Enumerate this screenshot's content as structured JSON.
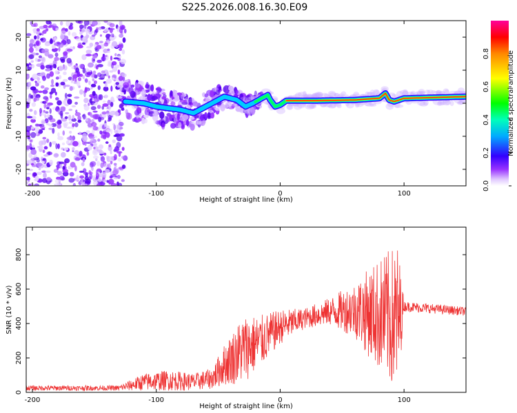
{
  "chart_data": [
    {
      "type": "heatmap",
      "title": "S225.2026.008.16.30.E09",
      "xlabel": "Height of straight line (km)",
      "ylabel": "Frequency (Hz)",
      "xlim": [
        -205,
        150
      ],
      "ylim": [
        -25,
        25
      ],
      "xticks": [
        -200,
        -100,
        0,
        100
      ],
      "yticks": [
        -20,
        -10,
        0,
        10,
        20
      ],
      "colorbar": {
        "label": "Normalized spectral amplitude",
        "range": [
          0,
          1
        ],
        "ticks": [
          0.0,
          0.2,
          0.4,
          0.6,
          0.8
        ]
      },
      "ridge": [
        {
          "x": -125,
          "y": 0.5
        },
        {
          "x": -110,
          "y": 0
        },
        {
          "x": -100,
          "y": -1
        },
        {
          "x": -80,
          "y": -2
        },
        {
          "x": -70,
          "y": -3
        },
        {
          "x": -60,
          "y": -1
        },
        {
          "x": -45,
          "y": 2
        },
        {
          "x": -35,
          "y": 1
        },
        {
          "x": -28,
          "y": -1
        },
        {
          "x": -22,
          "y": 0
        },
        {
          "x": -15,
          "y": 1.5
        },
        {
          "x": -10,
          "y": 2.5
        },
        {
          "x": -8,
          "y": 1
        },
        {
          "x": -4,
          "y": -1
        },
        {
          "x": 0,
          "y": -0.5
        },
        {
          "x": 5,
          "y": 0.8
        },
        {
          "x": 30,
          "y": 0.8
        },
        {
          "x": 60,
          "y": 1
        },
        {
          "x": 80,
          "y": 1.5
        },
        {
          "x": 85,
          "y": 3
        },
        {
          "x": 88,
          "y": 1
        },
        {
          "x": 92,
          "y": 0.5
        },
        {
          "x": 100,
          "y": 1.5
        },
        {
          "x": 150,
          "y": 2
        }
      ]
    },
    {
      "type": "line",
      "xlabel": "Height of straight line (km)",
      "ylabel": "SNR (10 * v/v)",
      "xlim": [
        -205,
        150
      ],
      "ylim": [
        0,
        960
      ],
      "xticks": [
        -200,
        -100,
        0,
        100
      ],
      "yticks": [
        0,
        200,
        400,
        600,
        800
      ],
      "series": [
        {
          "name": "SNR",
          "color": "#ee3333",
          "envelope": [
            {
              "x": -205,
              "mean": 25,
              "amp": 15
            },
            {
              "x": -130,
              "mean": 25,
              "amp": 15
            },
            {
              "x": -110,
              "mean": 60,
              "amp": 50
            },
            {
              "x": -90,
              "mean": 70,
              "amp": 60
            },
            {
              "x": -70,
              "mean": 60,
              "amp": 50
            },
            {
              "x": -55,
              "mean": 80,
              "amp": 60
            },
            {
              "x": -45,
              "mean": 160,
              "amp": 120
            },
            {
              "x": -30,
              "mean": 250,
              "amp": 200
            },
            {
              "x": -15,
              "mean": 300,
              "amp": 150
            },
            {
              "x": 0,
              "mean": 380,
              "amp": 100
            },
            {
              "x": 20,
              "mean": 430,
              "amp": 60
            },
            {
              "x": 40,
              "mean": 470,
              "amp": 80
            },
            {
              "x": 60,
              "mean": 480,
              "amp": 160
            },
            {
              "x": 80,
              "mean": 450,
              "amp": 330
            },
            {
              "x": 95,
              "mean": 420,
              "amp": 450
            },
            {
              "x": 100,
              "mean": 500,
              "amp": 30
            },
            {
              "x": 150,
              "mean": 470,
              "amp": 25
            }
          ]
        }
      ]
    }
  ]
}
